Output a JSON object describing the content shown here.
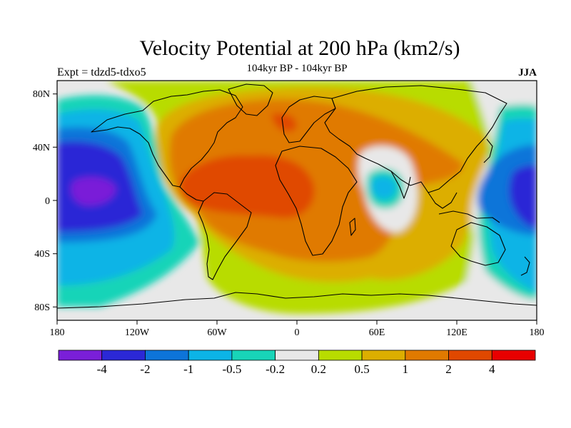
{
  "title": "Velocity Potential at 200 hPa (km2/s)",
  "subtitle": "104kyr BP - 104kyr BP",
  "left_label": "Expt = tdzd5-tdxo5",
  "right_label": "JJA",
  "map": {
    "lon_range": [
      -180,
      180
    ],
    "lat_range": [
      -90,
      90
    ],
    "lat_ticks": [
      {
        "value": 80,
        "label": "80N"
      },
      {
        "value": 40,
        "label": "40N"
      },
      {
        "value": 0,
        "label": "0"
      },
      {
        "value": -40,
        "label": "40S"
      },
      {
        "value": -80,
        "label": "80S"
      }
    ],
    "lon_ticks": [
      {
        "value": -180,
        "label": "180"
      },
      {
        "value": -120,
        "label": "120W"
      },
      {
        "value": -60,
        "label": "60W"
      },
      {
        "value": 0,
        "label": "0"
      },
      {
        "value": 60,
        "label": "60E"
      },
      {
        "value": 120,
        "label": "120E"
      },
      {
        "value": 180,
        "label": "180"
      }
    ]
  },
  "colorbar": {
    "colors": [
      "#7a1fd8",
      "#2b28d6",
      "#0d74d9",
      "#0cb4e6",
      "#18d4b8",
      "#e8e8e8",
      "#b8dc00",
      "#dcae00",
      "#e07a00",
      "#e04800",
      "#e80000"
    ],
    "labels": [
      "-4",
      "-2",
      "-1",
      "-0.5",
      "-0.2",
      "0.2",
      "0.5",
      "1",
      "2",
      "4"
    ]
  }
}
